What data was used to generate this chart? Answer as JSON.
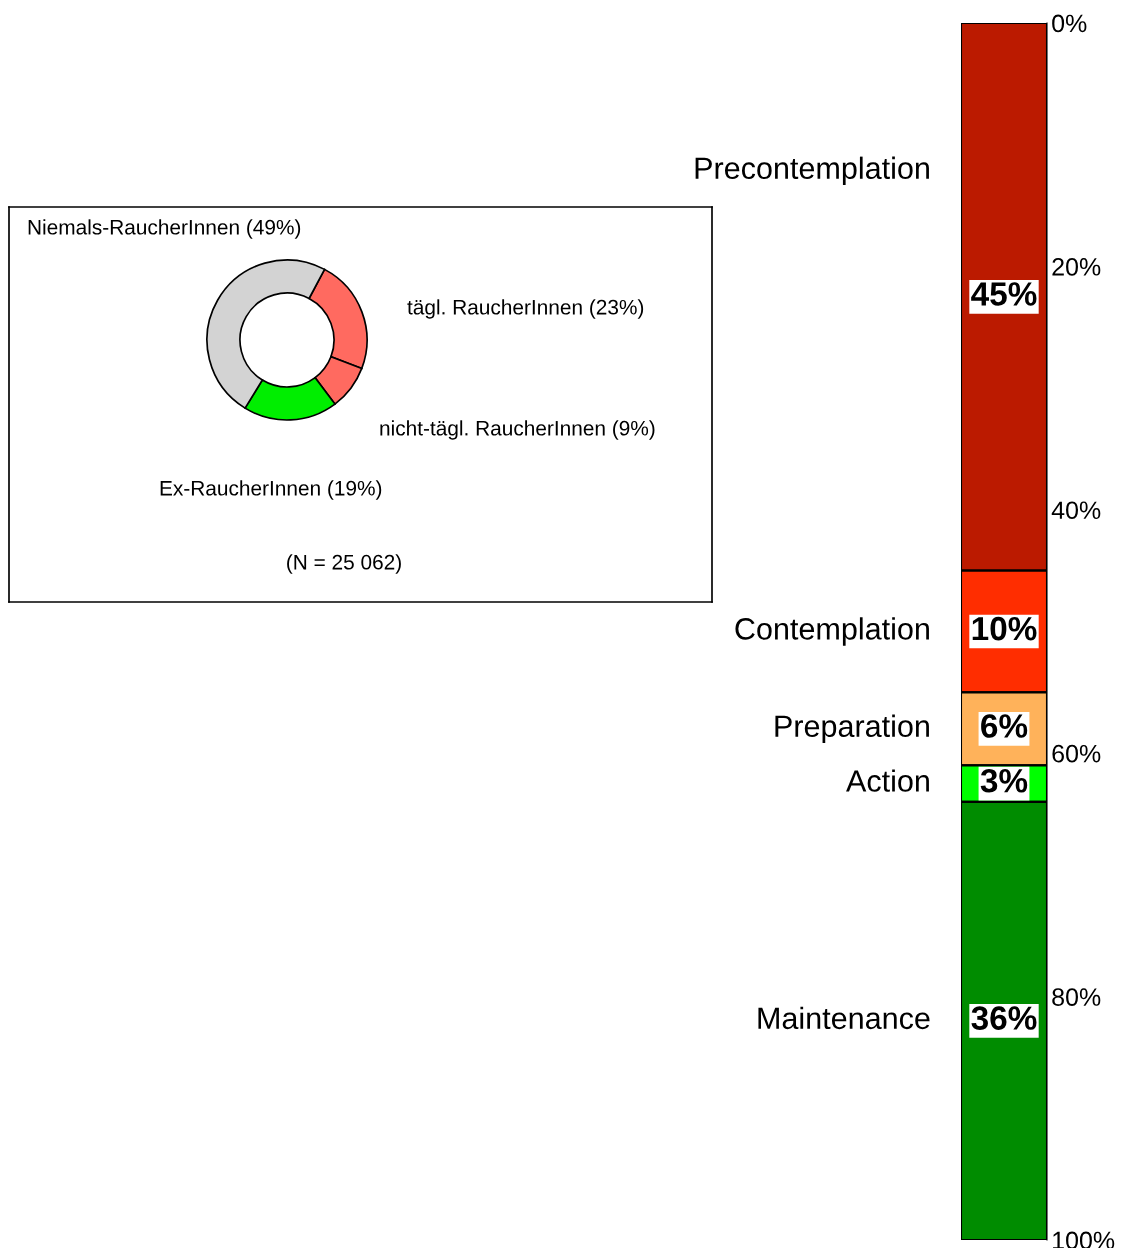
{
  "chart_data": [
    {
      "type": "donut",
      "categories": [
        "tägl. RaucherInnen (23%)",
        "nicht-tägl. RaucherInnen (9%)",
        "Ex-RaucherInnen (19%)",
        "Niemals-RaucherInnen (49%)"
      ],
      "values": [
        23,
        9,
        19,
        49
      ],
      "colors": [
        "#ff6a60",
        "#ff6a60",
        "#00ee00",
        "#d3d3d3"
      ],
      "annotations": [
        "(N = 25 062)"
      ]
    },
    {
      "type": "bar",
      "stacked": true,
      "categories": [
        null
      ],
      "series": [
        {
          "name": "Precontemplation",
          "color": "#bb1a00",
          "values": [
            45
          ],
          "value_labels": [
            "45%"
          ]
        },
        {
          "name": "Contemplation",
          "color": "#ff2d00",
          "values": [
            10
          ],
          "value_labels": [
            "10%"
          ]
        },
        {
          "name": "Preparation",
          "color": "#ffb25a",
          "values": [
            6
          ],
          "value_labels": [
            "6%"
          ]
        },
        {
          "name": "Action",
          "color": "#00ff00",
          "values": [
            3
          ],
          "value_labels": [
            "3%"
          ]
        },
        {
          "name": "Maintenance",
          "color": "#008c00",
          "values": [
            36
          ],
          "value_labels": [
            "36%"
          ]
        }
      ],
      "ylim": [
        100,
        0
      ],
      "yticks": [
        {
          "value": 0,
          "label": "0%"
        },
        {
          "value": 20,
          "label": "20%"
        },
        {
          "value": 40,
          "label": "40%"
        },
        {
          "value": 60,
          "label": "60%"
        },
        {
          "value": 80,
          "label": "80%"
        },
        {
          "value": 100,
          "label": "100%"
        }
      ]
    }
  ]
}
